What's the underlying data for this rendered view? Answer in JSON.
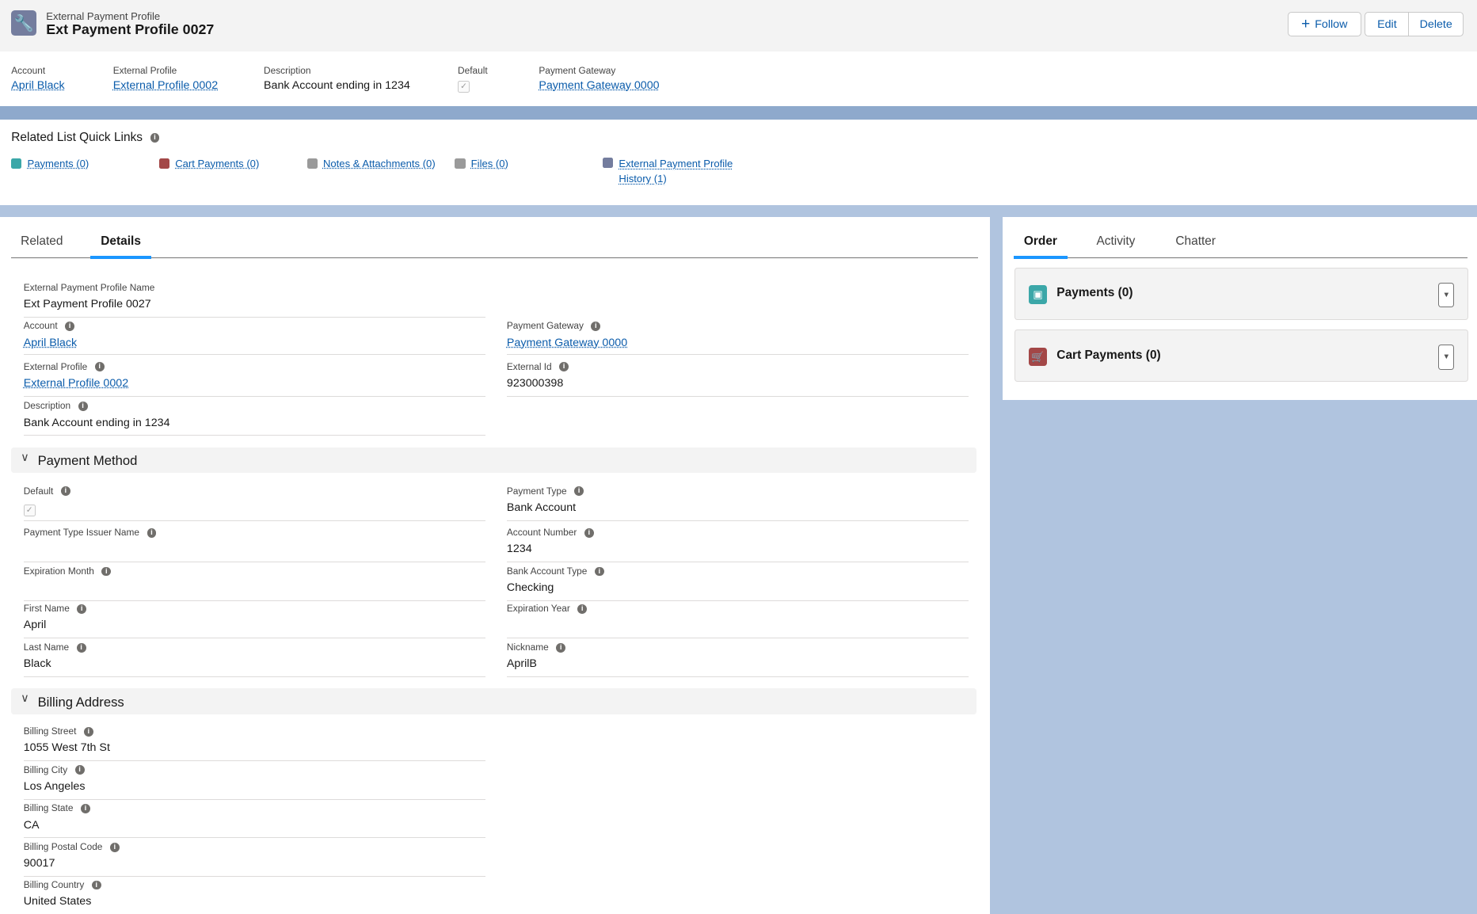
{
  "header": {
    "object_type": "External Payment Profile",
    "title": "Ext Payment Profile 0027",
    "icon": "wrench-icon",
    "follow_label": "Follow",
    "edit_label": "Edit",
    "delete_label": "Delete"
  },
  "highlights": [
    {
      "label": "Account",
      "value": "April Black",
      "link": true
    },
    {
      "label": "External Profile",
      "value": "External Profile 0002",
      "link": true
    },
    {
      "label": "Description",
      "value": "Bank Account ending in 1234",
      "link": false
    },
    {
      "label": "Default",
      "checked": true
    },
    {
      "label": "Payment Gateway",
      "value": "Payment Gateway 0000",
      "link": true
    }
  ],
  "quick_links": {
    "title": "Related List Quick Links",
    "items": [
      {
        "label": "Payments (0)",
        "color": "#3ba7a8"
      },
      {
        "label": "Cart Payments (0)",
        "color": "#a34747"
      },
      {
        "label": "Notes & Attachments (0)",
        "color": "#9a9a9a"
      },
      {
        "label": "Files (0)",
        "color": "#9a9a9a"
      },
      {
        "label": "External Payment Profile History (1)",
        "color": "#747d9e"
      }
    ]
  },
  "left_tabs": [
    "Related",
    "Details"
  ],
  "details": {
    "name_label": "External Payment Profile Name",
    "name_value": "Ext Payment Profile 0027",
    "account_label": "Account",
    "account_value": "April Black",
    "gateway_label": "Payment Gateway",
    "gateway_value": "Payment Gateway 0000",
    "ext_profile_label": "External Profile",
    "ext_profile_value": "External Profile 0002",
    "ext_id_label": "External Id",
    "ext_id_value": "923000398",
    "desc_label": "Description",
    "desc_value": "Bank Account ending in 1234"
  },
  "payment_method": {
    "title": "Payment Method",
    "default_label": "Default",
    "default_checked": true,
    "type_label": "Payment Type",
    "type_value": "Bank Account",
    "issuer_label": "Payment Type Issuer Name",
    "issuer_value": "",
    "acct_num_label": "Account Number",
    "acct_num_value": "1234",
    "exp_month_label": "Expiration Month",
    "exp_month_value": "",
    "bank_type_label": "Bank Account Type",
    "bank_type_value": "Checking",
    "first_label": "First Name",
    "first_value": "April",
    "exp_year_label": "Expiration Year",
    "exp_year_value": "",
    "last_label": "Last Name",
    "last_value": "Black",
    "nick_label": "Nickname",
    "nick_value": "AprilB"
  },
  "billing": {
    "title": "Billing Address",
    "street_label": "Billing Street",
    "street_value": "1055 West 7th St",
    "city_label": "Billing City",
    "city_value": "Los Angeles",
    "state_label": "Billing State",
    "state_value": "CA",
    "postal_label": "Billing Postal Code",
    "postal_value": "90017",
    "country_label": "Billing Country",
    "country_value": "United States"
  },
  "right_tabs": [
    "Order",
    "Activity",
    "Chatter"
  ],
  "related_cards": [
    {
      "label": "Payments (0)",
      "color": "#3ba7a8"
    },
    {
      "label": "Cart Payments (0)",
      "color": "#a34747"
    }
  ]
}
